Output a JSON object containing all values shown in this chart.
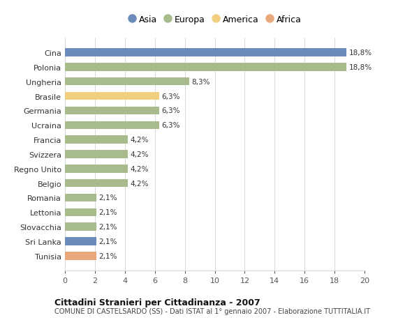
{
  "categories": [
    "Tunisia",
    "Sri Lanka",
    "Slovacchia",
    "Lettonia",
    "Romania",
    "Belgio",
    "Regno Unito",
    "Svizzera",
    "Francia",
    "Ucraina",
    "Germania",
    "Brasile",
    "Ungheria",
    "Polonia",
    "Cina"
  ],
  "values": [
    2.1,
    2.1,
    2.1,
    2.1,
    2.1,
    4.2,
    4.2,
    4.2,
    4.2,
    6.3,
    6.3,
    6.3,
    8.3,
    18.8,
    18.8
  ],
  "labels": [
    "2,1%",
    "2,1%",
    "2,1%",
    "2,1%",
    "2,1%",
    "4,2%",
    "4,2%",
    "4,2%",
    "4,2%",
    "6,3%",
    "6,3%",
    "6,3%",
    "8,3%",
    "18,8%",
    "18,8%"
  ],
  "colors": [
    "#e8a87c",
    "#6b8cba",
    "#a8bb8c",
    "#a8bb8c",
    "#a8bb8c",
    "#a8bb8c",
    "#a8bb8c",
    "#a8bb8c",
    "#a8bb8c",
    "#a8bb8c",
    "#a8bb8c",
    "#f0d080",
    "#a8bb8c",
    "#a8bb8c",
    "#6b8cba"
  ],
  "legend": [
    {
      "label": "Asia",
      "color": "#6b8cba"
    },
    {
      "label": "Europa",
      "color": "#a8bb8c"
    },
    {
      "label": "America",
      "color": "#f0d080"
    },
    {
      "label": "Africa",
      "color": "#e8a87c"
    }
  ],
  "title": "Cittadini Stranieri per Cittadinanza - 2007",
  "subtitle": "COMUNE DI CASTELSARDO (SS) - Dati ISTAT al 1° gennaio 2007 - Elaborazione TUTTITALIA.IT",
  "xlim": [
    0,
    20
  ],
  "xticks": [
    0,
    2,
    4,
    6,
    8,
    10,
    12,
    14,
    16,
    18,
    20
  ],
  "background_color": "#ffffff",
  "grid_color": "#d8d8d8"
}
